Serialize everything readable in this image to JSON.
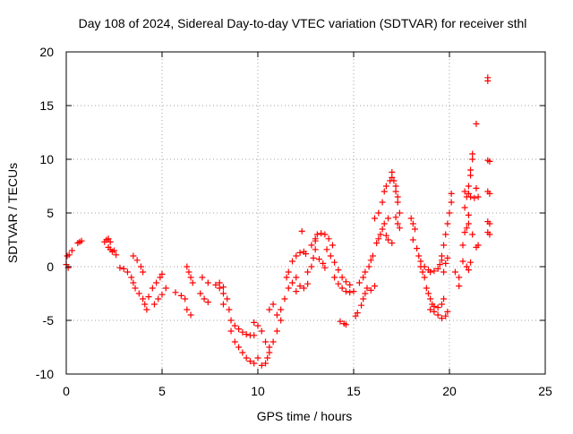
{
  "chart_data": {
    "type": "scatter",
    "title": "Day 108 of 2024, Sidereal Day-to-day VTEC variation (SDTVAR) for receiver sthl",
    "xlabel": "GPS time / hours",
    "ylabel": "SDTVAR / TECUs",
    "xlim": [
      0,
      25
    ],
    "ylim": [
      -10,
      20
    ],
    "x_ticks": [
      0,
      5,
      10,
      15,
      20,
      25
    ],
    "y_ticks": [
      -10,
      -5,
      0,
      5,
      10,
      15,
      20
    ],
    "x_tick_labels": [
      "0",
      "5",
      "10",
      "15",
      "20",
      "25"
    ],
    "y_tick_labels": [
      "-10",
      "-5",
      "0",
      "5",
      "10",
      "15",
      "20"
    ],
    "grid": true,
    "marker": "+",
    "color": "#ff0000",
    "series": [
      {
        "name": "SDTVAR",
        "points": [
          [
            0.0,
            0.2
          ],
          [
            0.05,
            1.0
          ],
          [
            0.1,
            -0.1
          ],
          [
            0.15,
            1.1
          ],
          [
            0.3,
            1.5
          ],
          [
            0.6,
            2.2
          ],
          [
            0.7,
            2.3
          ],
          [
            0.8,
            2.4
          ],
          [
            2.0,
            2.3
          ],
          [
            2.1,
            2.5
          ],
          [
            2.2,
            2.6
          ],
          [
            2.3,
            2.3
          ],
          [
            2.2,
            1.8
          ],
          [
            2.3,
            1.6
          ],
          [
            2.4,
            1.4
          ],
          [
            2.5,
            1.5
          ],
          [
            2.6,
            1.1
          ],
          [
            2.8,
            -0.1
          ],
          [
            3.0,
            -0.2
          ],
          [
            3.2,
            -0.5
          ],
          [
            3.4,
            -1.0
          ],
          [
            3.5,
            -1.5
          ],
          [
            3.6,
            -2.0
          ],
          [
            3.5,
            1.0
          ],
          [
            3.7,
            0.6
          ],
          [
            3.9,
            0.0
          ],
          [
            4.0,
            -0.5
          ],
          [
            3.8,
            -2.5
          ],
          [
            4.0,
            -3.0
          ],
          [
            4.1,
            -3.5
          ],
          [
            4.2,
            -4.0
          ],
          [
            4.3,
            -2.8
          ],
          [
            4.5,
            -2.0
          ],
          [
            4.7,
            -1.5
          ],
          [
            4.9,
            -1.0
          ],
          [
            5.0,
            -0.7
          ],
          [
            4.6,
            -3.5
          ],
          [
            4.8,
            -3.0
          ],
          [
            5.0,
            -2.6
          ],
          [
            5.2,
            -2.0
          ],
          [
            5.7,
            -2.4
          ],
          [
            6.0,
            -2.7
          ],
          [
            6.2,
            -3.0
          ],
          [
            6.3,
            0.0
          ],
          [
            6.4,
            -0.5
          ],
          [
            6.5,
            -1.0
          ],
          [
            6.6,
            -1.5
          ],
          [
            6.3,
            -4.0
          ],
          [
            6.5,
            -4.5
          ],
          [
            7.0,
            -2.5
          ],
          [
            7.2,
            -3.0
          ],
          [
            7.4,
            -3.3
          ],
          [
            7.1,
            -1.0
          ],
          [
            7.4,
            -1.5
          ],
          [
            7.8,
            -1.7
          ],
          [
            8.0,
            -2.0
          ],
          [
            8.2,
            -2.5
          ],
          [
            8.2,
            -3.5
          ],
          [
            8.0,
            -1.5
          ],
          [
            8.2,
            -1.9
          ],
          [
            8.4,
            -3.0
          ],
          [
            8.5,
            -4.0
          ],
          [
            8.6,
            -5.0
          ],
          [
            8.8,
            -5.5
          ],
          [
            8.6,
            -6.0
          ],
          [
            8.8,
            -7.0
          ],
          [
            9.0,
            -7.5
          ],
          [
            9.2,
            -8.0
          ],
          [
            9.4,
            -8.5
          ],
          [
            9.6,
            -8.8
          ],
          [
            9.8,
            -9.0
          ],
          [
            9.0,
            -5.8
          ],
          [
            9.2,
            -6.1
          ],
          [
            9.4,
            -6.3
          ],
          [
            9.6,
            -6.4
          ],
          [
            9.8,
            -6.4
          ],
          [
            9.8,
            -5.2
          ],
          [
            10.0,
            -5.5
          ],
          [
            10.2,
            -6.0
          ],
          [
            10.4,
            -7.0
          ],
          [
            10.6,
            -7.5
          ],
          [
            10.0,
            -8.5
          ],
          [
            10.2,
            -9.2
          ],
          [
            10.4,
            -9.0
          ],
          [
            10.5,
            -8.5
          ],
          [
            10.6,
            -8.0
          ],
          [
            10.8,
            -7.0
          ],
          [
            11.0,
            -6.0
          ],
          [
            11.2,
            -5.0
          ],
          [
            10.6,
            -4.0
          ],
          [
            10.8,
            -3.5
          ],
          [
            11.0,
            -4.5
          ],
          [
            11.2,
            -4.0
          ],
          [
            11.4,
            -3.0
          ],
          [
            11.6,
            -2.0
          ],
          [
            11.8,
            -1.5
          ],
          [
            12.0,
            -1.0
          ],
          [
            11.5,
            -1.0
          ],
          [
            11.6,
            -0.5
          ],
          [
            11.8,
            0.5
          ],
          [
            12.0,
            1.0
          ],
          [
            12.2,
            1.3
          ],
          [
            12.4,
            1.4
          ],
          [
            12.5,
            1.2
          ],
          [
            12.0,
            -2.3
          ],
          [
            12.2,
            -1.8
          ],
          [
            12.4,
            -2.0
          ],
          [
            12.6,
            -1.6
          ],
          [
            12.3,
            3.3
          ],
          [
            12.6,
            -0.5
          ],
          [
            12.8,
            0.0
          ],
          [
            12.9,
            0.8
          ],
          [
            13.0,
            1.6
          ],
          [
            13.0,
            2.4
          ],
          [
            12.8,
            2.0
          ],
          [
            13.0,
            2.6
          ],
          [
            13.1,
            3.0
          ],
          [
            13.3,
            3.1
          ],
          [
            13.5,
            3.0
          ],
          [
            13.7,
            2.6
          ],
          [
            13.9,
            2.0
          ],
          [
            13.2,
            0.7
          ],
          [
            13.4,
            0.3
          ],
          [
            13.5,
            -0.1
          ],
          [
            13.6,
            1.6
          ],
          [
            13.8,
            1.0
          ],
          [
            14.0,
            0.4
          ],
          [
            14.2,
            -0.3
          ],
          [
            14.4,
            -1.0
          ],
          [
            14.6,
            -1.4
          ],
          [
            14.8,
            -1.7
          ],
          [
            14.0,
            -1.0
          ],
          [
            14.2,
            -1.6
          ],
          [
            14.4,
            -2.0
          ],
          [
            14.6,
            -2.3
          ],
          [
            14.8,
            -2.4
          ],
          [
            15.0,
            -2.3
          ],
          [
            14.3,
            -5.1
          ],
          [
            14.5,
            -5.3
          ],
          [
            14.6,
            -5.4
          ],
          [
            15.1,
            -4.6
          ],
          [
            15.2,
            -4.3
          ],
          [
            15.4,
            -3.6
          ],
          [
            15.5,
            -3.0
          ],
          [
            15.6,
            -2.5
          ],
          [
            15.7,
            -2.0
          ],
          [
            15.3,
            -1.5
          ],
          [
            15.5,
            -1.0
          ],
          [
            15.6,
            -0.5
          ],
          [
            15.8,
            0.0
          ],
          [
            15.9,
            0.6
          ],
          [
            16.0,
            1.0
          ],
          [
            15.9,
            -2.2
          ],
          [
            16.1,
            -1.8
          ],
          [
            16.2,
            2.2
          ],
          [
            16.3,
            2.6
          ],
          [
            16.4,
            3.0
          ],
          [
            16.5,
            3.5
          ],
          [
            16.6,
            4.0
          ],
          [
            16.8,
            4.5
          ],
          [
            16.1,
            4.5
          ],
          [
            16.3,
            5.0
          ],
          [
            16.5,
            6.0
          ],
          [
            16.6,
            7.0
          ],
          [
            16.7,
            7.5
          ],
          [
            16.9,
            8.0
          ],
          [
            17.0,
            8.3
          ],
          [
            17.1,
            8.0
          ],
          [
            17.2,
            7.0
          ],
          [
            17.3,
            6.0
          ],
          [
            17.4,
            5.0
          ],
          [
            16.7,
            2.9
          ],
          [
            16.8,
            2.5
          ],
          [
            17.0,
            2.2
          ],
          [
            17.2,
            4.6
          ],
          [
            17.3,
            4.0
          ],
          [
            17.4,
            3.6
          ],
          [
            17.0,
            8.8
          ],
          [
            17.2,
            7.5
          ],
          [
            17.3,
            6.5
          ],
          [
            18.0,
            4.5
          ],
          [
            18.1,
            4.0
          ],
          [
            18.2,
            3.5
          ],
          [
            18.1,
            2.5
          ],
          [
            18.3,
            1.7
          ],
          [
            18.4,
            1.0
          ],
          [
            18.5,
            0.0
          ],
          [
            18.6,
            -0.5
          ],
          [
            18.7,
            -1.0
          ],
          [
            18.8,
            -2.0
          ],
          [
            18.9,
            -2.5
          ],
          [
            19.0,
            -3.0
          ],
          [
            19.1,
            -3.5
          ],
          [
            19.2,
            -3.7
          ],
          [
            19.4,
            -3.8
          ],
          [
            19.6,
            -3.5
          ],
          [
            19.7,
            -3.0
          ],
          [
            19.0,
            -4.0
          ],
          [
            19.2,
            -4.2
          ],
          [
            19.4,
            -4.5
          ],
          [
            19.6,
            -4.8
          ],
          [
            19.8,
            -4.6
          ],
          [
            19.9,
            -4.2
          ],
          [
            18.5,
            0.5
          ],
          [
            18.7,
            0.0
          ],
          [
            18.9,
            -0.3
          ],
          [
            19.0,
            -0.5
          ],
          [
            19.2,
            -0.4
          ],
          [
            19.4,
            -0.2
          ],
          [
            19.5,
            0.2
          ],
          [
            19.6,
            0.6
          ],
          [
            19.6,
            1.0
          ],
          [
            19.7,
            2.0
          ],
          [
            19.8,
            3.0
          ],
          [
            19.9,
            4.0
          ],
          [
            20.0,
            5.0
          ],
          [
            20.1,
            6.0
          ],
          [
            20.1,
            6.8
          ],
          [
            19.7,
            -0.5
          ],
          [
            19.8,
            0.3
          ],
          [
            19.9,
            0.8
          ],
          [
            20.3,
            -0.5
          ],
          [
            20.5,
            -1.0
          ],
          [
            20.7,
            0.5
          ],
          [
            20.9,
            0.0
          ],
          [
            21.0,
            -0.3
          ],
          [
            21.1,
            0.4
          ],
          [
            20.5,
            -1.8
          ],
          [
            20.7,
            2.0
          ],
          [
            20.8,
            3.2
          ],
          [
            20.9,
            3.6
          ],
          [
            21.0,
            4.0
          ],
          [
            21.0,
            4.8
          ],
          [
            20.8,
            5.5
          ],
          [
            20.9,
            6.5
          ],
          [
            21.0,
            7.5
          ],
          [
            21.1,
            8.5
          ],
          [
            21.1,
            9.0
          ],
          [
            21.2,
            10.0
          ],
          [
            21.2,
            10.5
          ],
          [
            20.8,
            7.0
          ],
          [
            21.0,
            6.8
          ],
          [
            21.1,
            6.5
          ],
          [
            21.3,
            6.4
          ],
          [
            21.2,
            3.0
          ],
          [
            21.4,
            7.3
          ],
          [
            21.5,
            6.5
          ],
          [
            21.4,
            13.3
          ],
          [
            21.4,
            1.8
          ],
          [
            21.5,
            2.0
          ],
          [
            22.0,
            17.6
          ],
          [
            22.0,
            17.3
          ],
          [
            22.0,
            9.9
          ],
          [
            22.1,
            9.8
          ],
          [
            22.0,
            7.0
          ],
          [
            22.1,
            6.8
          ],
          [
            22.0,
            4.2
          ],
          [
            22.1,
            4.0
          ],
          [
            22.0,
            3.2
          ],
          [
            22.1,
            3.0
          ]
        ]
      }
    ]
  }
}
